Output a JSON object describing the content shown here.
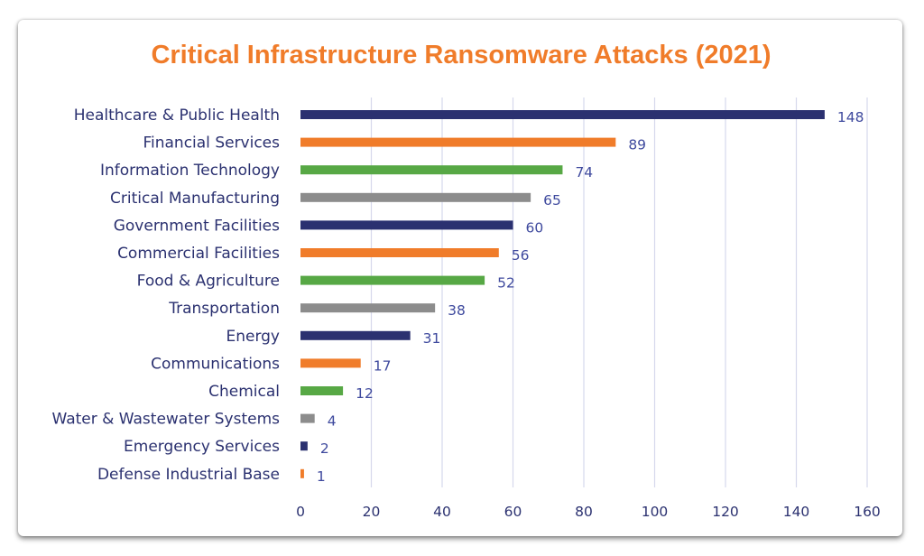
{
  "chart_data": {
    "type": "bar",
    "orientation": "horizontal",
    "title": "Critical Infrastructure Ransomware Attacks (2021)",
    "xlabel": "",
    "ylabel": "",
    "categories": [
      "Healthcare & Public Health",
      "Financial Services",
      "Information Technology",
      "Critical Manufacturing",
      "Government Facilities",
      "Commercial Facilities",
      "Food & Agriculture",
      "Transportation",
      "Energy",
      "Communications",
      "Chemical",
      "Water & Wastewater Systems",
      "Emergency Services",
      "Defense Industrial Base"
    ],
    "values": [
      148,
      89,
      74,
      65,
      60,
      56,
      52,
      38,
      31,
      17,
      12,
      4,
      2,
      1
    ],
    "bar_colors": [
      "#2b3170",
      "#f07c2a",
      "#57a845",
      "#8c8c8c",
      "#2b3170",
      "#f07c2a",
      "#57a845",
      "#8c8c8c",
      "#2b3170",
      "#f07c2a",
      "#57a845",
      "#8c8c8c",
      "#2b3170",
      "#f07c2a"
    ],
    "xlim": [
      0,
      160
    ],
    "xticks": [
      0,
      20,
      40,
      60,
      80,
      100,
      120,
      140,
      160
    ],
    "grid": "vertical",
    "legend": "none",
    "data_labels": true
  },
  "colors": {
    "title": "#f07c2a",
    "category_text": "#2b3170",
    "value_text": "#3f4a9e",
    "tick_text": "#2b3170",
    "grid": "#d6d8ec"
  }
}
